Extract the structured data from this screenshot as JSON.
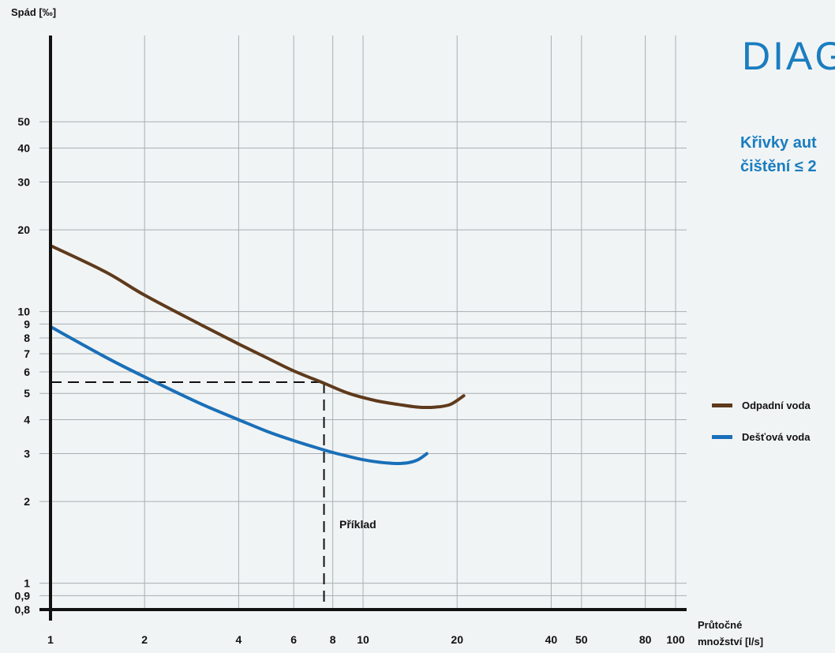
{
  "title": "DIAG",
  "subtitle_lines": [
    "Křivky aut",
    "čištění ≤ 2"
  ],
  "colors": {
    "accent": "#1a7dc0",
    "odpadni": "#5e3a1c",
    "destova": "#1a6fb8",
    "axis": "#111111",
    "grid": "#a8aeb2"
  },
  "chart_data": {
    "type": "line",
    "x_scale": "log",
    "y_scale": "log",
    "xlabel": [
      "Průtočné",
      "množství [l/s]"
    ],
    "ylabel": "Spád [‰]",
    "xlim": [
      1,
      130
    ],
    "ylim": [
      0.8,
      60
    ],
    "x_ticks": [
      1,
      2,
      4,
      6,
      8,
      10,
      20,
      40,
      50,
      80,
      100
    ],
    "x_tick_labels": [
      "1",
      "2",
      "4",
      "6",
      "8",
      "10",
      "20",
      "40",
      "50",
      "80",
      "100"
    ],
    "y_ticks": [
      0.8,
      0.9,
      1,
      2,
      3,
      4,
      5,
      6,
      7,
      8,
      9,
      10,
      20,
      30,
      40,
      50
    ],
    "y_tick_labels": [
      "0,8",
      "0,9",
      "1",
      "2",
      "3",
      "4",
      "5",
      "6",
      "7",
      "8",
      "9",
      "10",
      "20",
      "30",
      "40",
      "50"
    ],
    "grid": true,
    "legend_position": "right",
    "series": [
      {
        "name": "Odpadní voda",
        "color": "#5e3a1c",
        "x": [
          1,
          1.5,
          2,
          3,
          4,
          5,
          6,
          7.5,
          9,
          11,
          13,
          15,
          17,
          19,
          21
        ],
        "y": [
          17.5,
          14.0,
          11.5,
          9.0,
          7.6,
          6.7,
          6.05,
          5.45,
          5.0,
          4.7,
          4.55,
          4.45,
          4.45,
          4.55,
          4.9
        ]
      },
      {
        "name": "Dešťová voda",
        "color": "#1a6fb8",
        "x": [
          1,
          1.5,
          2,
          3,
          4,
          5,
          6,
          7,
          8,
          9,
          10,
          11,
          12,
          13,
          14,
          15,
          16
        ],
        "y": [
          8.8,
          6.8,
          5.75,
          4.6,
          4.0,
          3.6,
          3.35,
          3.17,
          3.03,
          2.93,
          2.85,
          2.8,
          2.77,
          2.76,
          2.78,
          2.85,
          3.0
        ]
      }
    ],
    "example": {
      "label": "Příklad",
      "x": 7.5,
      "y": 5.5
    }
  }
}
